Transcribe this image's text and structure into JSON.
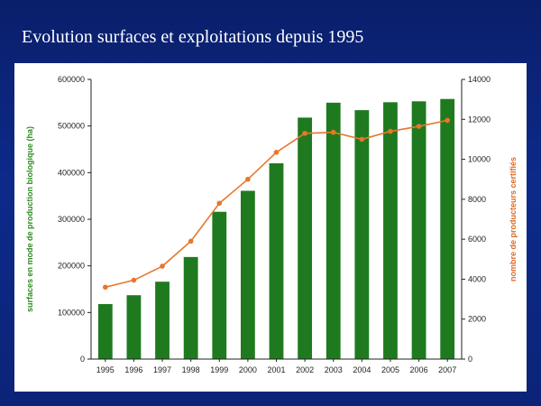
{
  "slide": {
    "title": "Evolution surfaces et exploitations depuis 1995"
  },
  "colors": {
    "background": "#0d2a8a",
    "bar": "#1f7a1f",
    "line": "#e8762b",
    "left_axis_label": "#2e8b22",
    "right_axis_label": "#e06a25"
  },
  "chart_data": {
    "type": "bar",
    "title": "",
    "categories": [
      "1995",
      "1996",
      "1997",
      "1998",
      "1999",
      "2000",
      "2001",
      "2002",
      "2003",
      "2004",
      "2005",
      "2006",
      "2007"
    ],
    "series": [
      {
        "type": "bar",
        "axis": "left",
        "values": [
          118000,
          137000,
          166000,
          219000,
          316000,
          361000,
          420000,
          518000,
          550000,
          534000,
          551000,
          553000,
          558000
        ]
      },
      {
        "type": "line",
        "axis": "right",
        "values": [
          3600,
          3950,
          4650,
          5900,
          7800,
          9000,
          10350,
          11300,
          11350,
          11000,
          11400,
          11650,
          11950
        ]
      }
    ],
    "ylabel_left": "surfaces en mode de production biologique (ha)",
    "ylabel_right": "nombre de producteurs certifiés",
    "ylim_left": [
      0,
      600000
    ],
    "ylim_right": [
      0,
      14000
    ],
    "yticks_left": [
      "0",
      "100000",
      "200000",
      "300000",
      "400000",
      "500000",
      "600000"
    ],
    "yticks_right": [
      "0",
      "2000",
      "4000",
      "6000",
      "8000",
      "10000",
      "12000",
      "14000"
    ],
    "grid": false,
    "legend": "none"
  }
}
